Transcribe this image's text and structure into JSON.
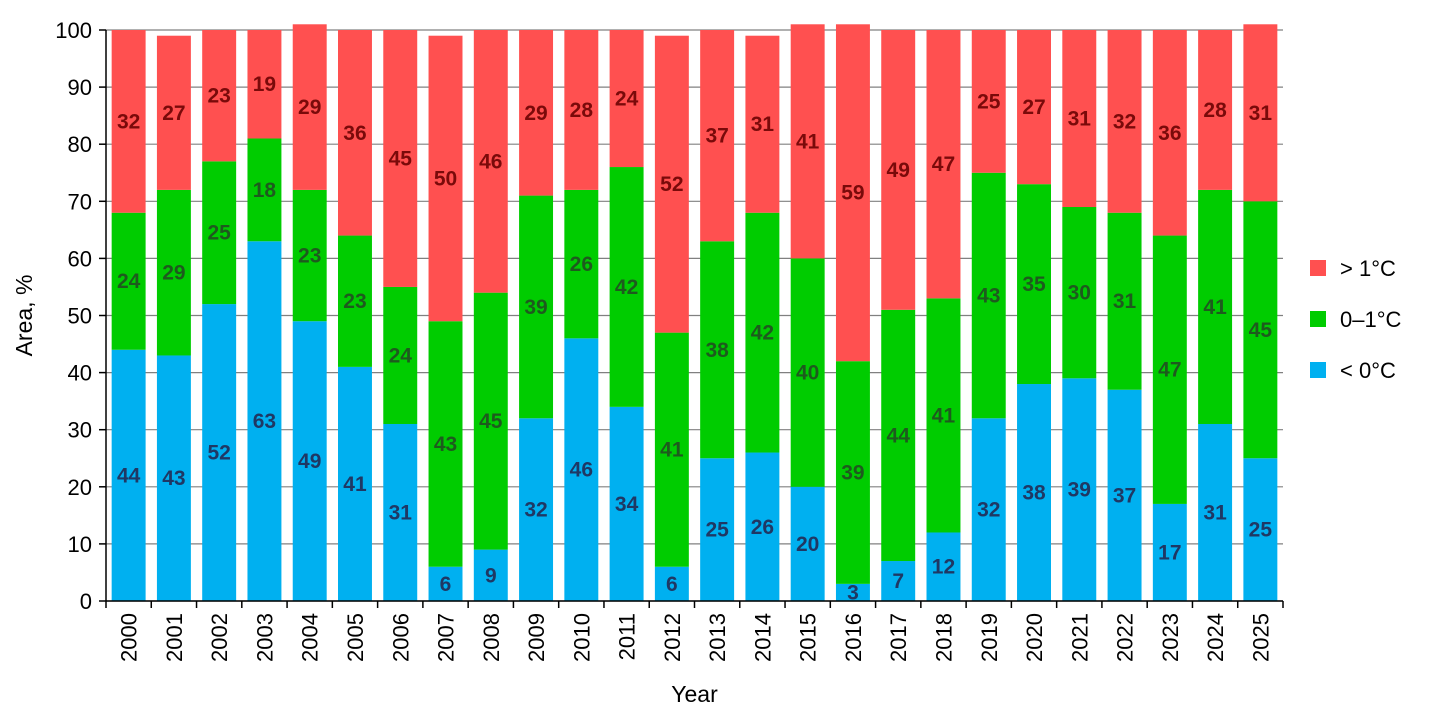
{
  "chart_data": {
    "type": "bar",
    "stacked": true,
    "title": "",
    "xlabel": "Year",
    "ylabel": "Area, %",
    "ylim": [
      0,
      100
    ],
    "yticks": [
      0,
      10,
      20,
      30,
      40,
      50,
      60,
      70,
      80,
      90,
      100
    ],
    "grid": true,
    "legend_position": "right",
    "categories": [
      "2000",
      "2001",
      "2002",
      "2003",
      "2004",
      "2005",
      "2006",
      "2007",
      "2008",
      "2009",
      "2010",
      "2011",
      "2012",
      "2013",
      "2014",
      "2015",
      "2016",
      "2017",
      "2018",
      "2019",
      "2020",
      "2021",
      "2022",
      "2023",
      "2024",
      "2025"
    ],
    "series": [
      {
        "name": "< 0°C",
        "color": "#00B0F0",
        "label_color": "#1F3864",
        "values": [
          44,
          43,
          52,
          63,
          49,
          41,
          31,
          6,
          9,
          32,
          46,
          34,
          6,
          25,
          26,
          20,
          3,
          7,
          12,
          32,
          38,
          39,
          37,
          17,
          31,
          25
        ]
      },
      {
        "name": "0–1°C",
        "color": "#00CC00",
        "label_color": "#1E5A1E",
        "values": [
          24,
          29,
          25,
          18,
          23,
          23,
          24,
          43,
          45,
          39,
          26,
          42,
          41,
          38,
          42,
          40,
          39,
          44,
          41,
          43,
          35,
          30,
          31,
          47,
          41,
          45
        ]
      },
      {
        "name": "> 1°C",
        "color": "#FF5050",
        "label_color": "#7A0A0A",
        "values": [
          32,
          27,
          23,
          19,
          29,
          36,
          45,
          50,
          46,
          29,
          28,
          24,
          52,
          37,
          31,
          41,
          59,
          49,
          47,
          25,
          27,
          31,
          32,
          36,
          28,
          31
        ]
      }
    ]
  }
}
